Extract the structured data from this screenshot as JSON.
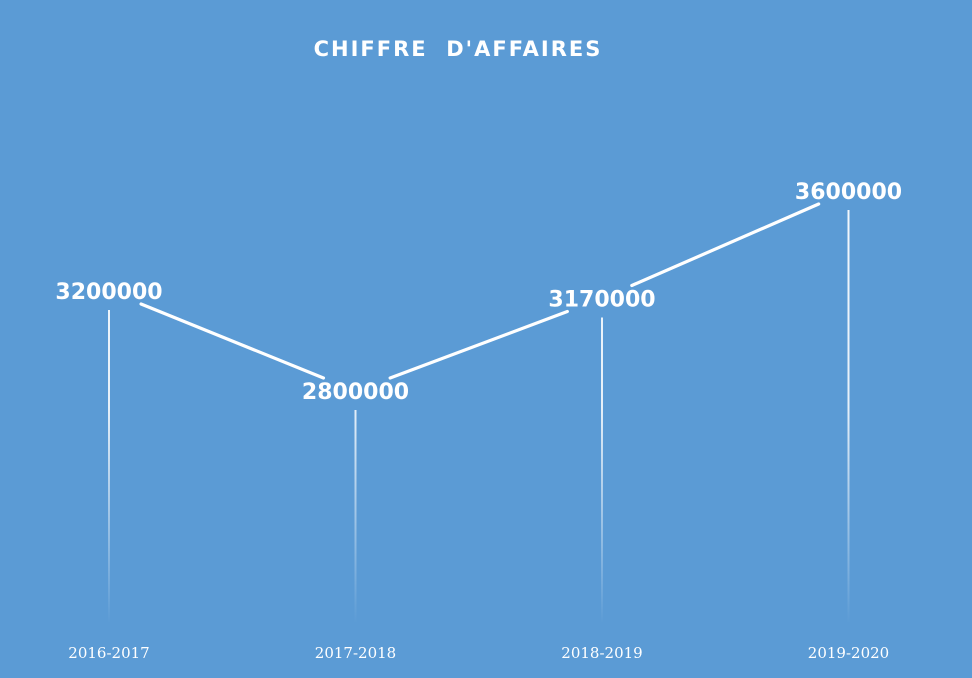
{
  "chart_data": {
    "type": "line",
    "title": "CHIFFRE  D'AFFAIRES",
    "categories": [
      "2016-2017",
      "2017-2018",
      "2018-2019",
      "2019-2020"
    ],
    "series": [
      {
        "values": [
          3200000,
          2800000,
          3170000,
          3600000
        ]
      }
    ],
    "data_labels": [
      "3200000",
      "2800000",
      "3170000",
      "3600000"
    ],
    "xlabel": "",
    "ylabel": "",
    "legend": "none",
    "grid": false,
    "drop_lines": true,
    "colors": {
      "background": "#5b9bd5",
      "line": "#ffffff",
      "text": "#ffffff"
    }
  }
}
